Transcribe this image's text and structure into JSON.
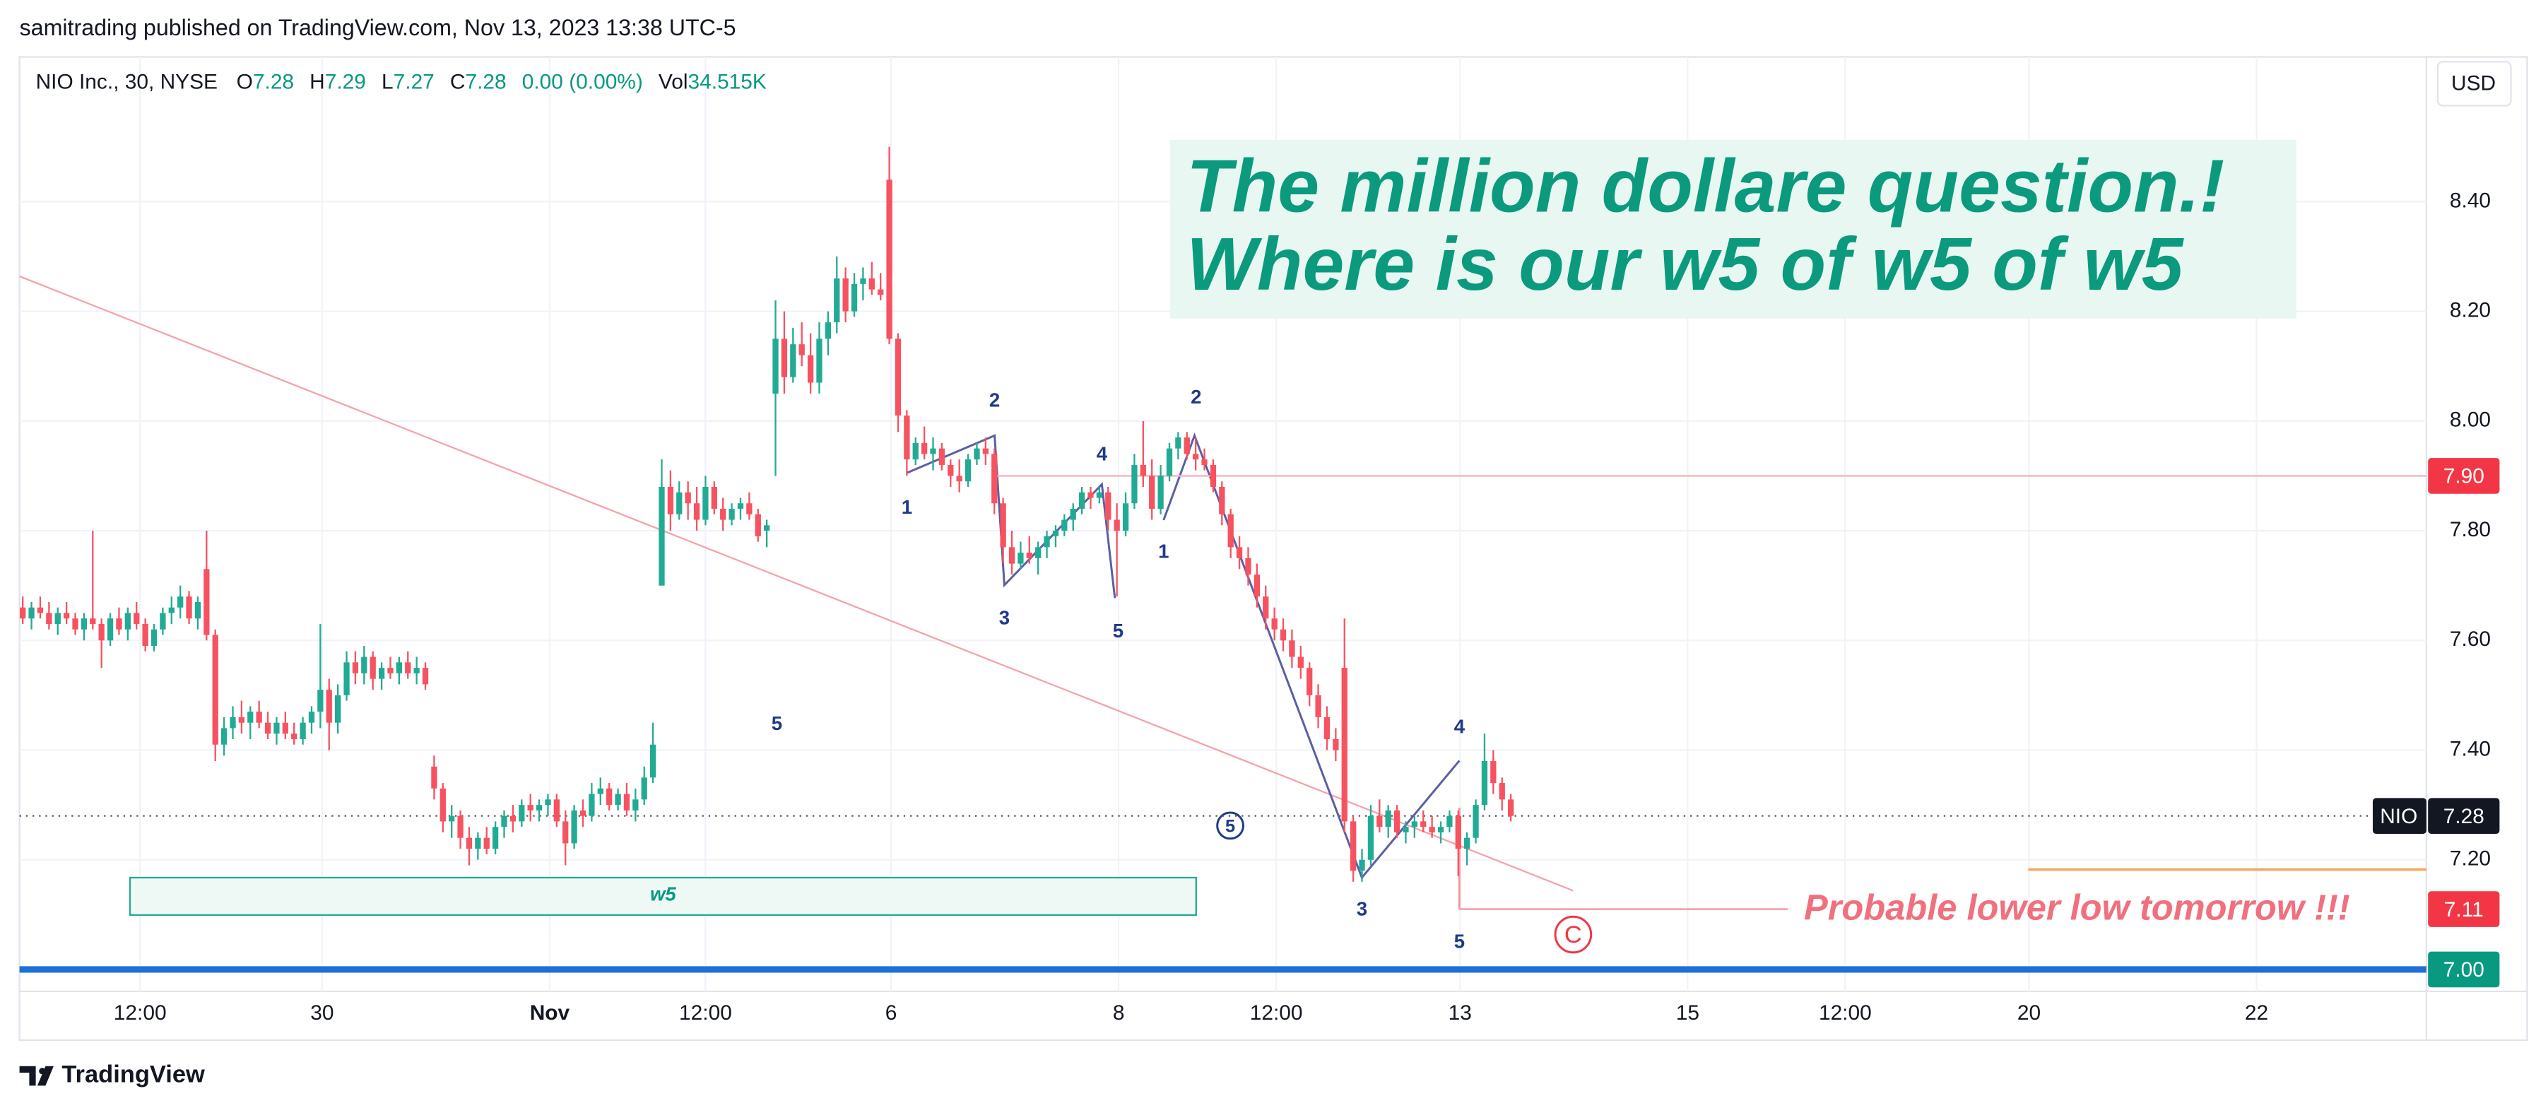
{
  "header": "samitrading published on TradingView.com, Nov 13, 2023 13:38 UTC-5",
  "footer": "TradingView",
  "chart_data": {
    "type": "candlestick",
    "legend": {
      "symbol": "NIO Inc., 30, NYSE",
      "open_label": "O",
      "open": 7.28,
      "high_label": "H",
      "high": 7.29,
      "low_label": "L",
      "low": 7.27,
      "close_label": "C",
      "close": 7.28,
      "change": "0.00 (0.00%)",
      "volume_label": "Vol",
      "volume": "34.515K"
    },
    "currency": "USD",
    "up_color": "#22ab94",
    "down_color": "#f7525f",
    "grid": true,
    "grid_color": "#f0f3fa",
    "ylim": [
      6.96,
      8.664
    ],
    "yticks": [
      {
        "value": 7.2,
        "label": "7.20"
      },
      {
        "value": 7.4,
        "label": "7.40"
      },
      {
        "value": 7.6,
        "label": "7.60"
      },
      {
        "value": 7.8,
        "label": "7.80"
      },
      {
        "value": 8.0,
        "label": "8.00"
      },
      {
        "value": 8.2,
        "label": "8.20"
      },
      {
        "value": 8.4,
        "label": "8.40"
      }
    ],
    "xlim": [
      -0.37,
      274.6
    ],
    "xticks": [
      {
        "value": 13.4,
        "label": "12:00"
      },
      {
        "value": 34.2,
        "label": "30"
      },
      {
        "value": 60.2,
        "label": "Nov"
      },
      {
        "value": 78,
        "label": "12:00"
      },
      {
        "value": 99.2,
        "label": "6"
      },
      {
        "value": 125.2,
        "label": "8"
      },
      {
        "value": 143.2,
        "label": "12:00"
      },
      {
        "value": 164.2,
        "label": "13"
      },
      {
        "value": 190.2,
        "label": "15"
      },
      {
        "value": 208.2,
        "label": "12:00"
      },
      {
        "value": 229.2,
        "label": "20"
      },
      {
        "value": 255.2,
        "label": "22"
      }
    ],
    "ohlc": [
      [
        7.66,
        7.68,
        7.63,
        7.64
      ],
      [
        7.64,
        7.67,
        7.62,
        7.66
      ],
      [
        7.66,
        7.68,
        7.64,
        7.65
      ],
      [
        7.65,
        7.67,
        7.62,
        7.63
      ],
      [
        7.63,
        7.66,
        7.61,
        7.65
      ],
      [
        7.65,
        7.67,
        7.63,
        7.64
      ],
      [
        7.64,
        7.65,
        7.61,
        7.62
      ],
      [
        7.62,
        7.65,
        7.6,
        7.64
      ],
      [
        7.64,
        7.8,
        7.62,
        7.63
      ],
      [
        7.63,
        7.64,
        7.55,
        7.6
      ],
      [
        7.6,
        7.65,
        7.59,
        7.64
      ],
      [
        7.64,
        7.66,
        7.61,
        7.62
      ],
      [
        7.62,
        7.66,
        7.6,
        7.65
      ],
      [
        7.65,
        7.67,
        7.62,
        7.63
      ],
      [
        7.63,
        7.64,
        7.58,
        7.59
      ],
      [
        7.59,
        7.63,
        7.58,
        7.62
      ],
      [
        7.62,
        7.66,
        7.61,
        7.65
      ],
      [
        7.65,
        7.68,
        7.63,
        7.66
      ],
      [
        7.66,
        7.7,
        7.64,
        7.68
      ],
      [
        7.68,
        7.69,
        7.63,
        7.64
      ],
      [
        7.64,
        7.68,
        7.62,
        7.67
      ],
      [
        7.73,
        7.8,
        7.6,
        7.61
      ],
      [
        7.61,
        7.62,
        7.38,
        7.41
      ],
      [
        7.41,
        7.46,
        7.39,
        7.44
      ],
      [
        7.44,
        7.48,
        7.42,
        7.46
      ],
      [
        7.46,
        7.49,
        7.43,
        7.45
      ],
      [
        7.45,
        7.48,
        7.42,
        7.47
      ],
      [
        7.47,
        7.49,
        7.44,
        7.45
      ],
      [
        7.45,
        7.47,
        7.42,
        7.43
      ],
      [
        7.43,
        7.46,
        7.41,
        7.45
      ],
      [
        7.45,
        7.47,
        7.42,
        7.43
      ],
      [
        7.43,
        7.45,
        7.41,
        7.42
      ],
      [
        7.42,
        7.46,
        7.41,
        7.45
      ],
      [
        7.45,
        7.48,
        7.43,
        7.47
      ],
      [
        7.47,
        7.63,
        7.44,
        7.51
      ],
      [
        7.51,
        7.53,
        7.4,
        7.45
      ],
      [
        7.45,
        7.52,
        7.43,
        7.5
      ],
      [
        7.5,
        7.58,
        7.49,
        7.56
      ],
      [
        7.56,
        7.58,
        7.52,
        7.54
      ],
      [
        7.54,
        7.59,
        7.52,
        7.57
      ],
      [
        7.57,
        7.58,
        7.51,
        7.53
      ],
      [
        7.53,
        7.56,
        7.51,
        7.55
      ],
      [
        7.55,
        7.57,
        7.53,
        7.54
      ],
      [
        7.54,
        7.57,
        7.52,
        7.56
      ],
      [
        7.56,
        7.58,
        7.53,
        7.54
      ],
      [
        7.54,
        7.57,
        7.52,
        7.55
      ],
      [
        7.55,
        7.56,
        7.51,
        7.52
      ],
      [
        7.37,
        7.39,
        7.31,
        7.33
      ],
      [
        7.33,
        7.34,
        7.25,
        7.27
      ],
      [
        7.27,
        7.3,
        7.24,
        7.28
      ],
      [
        7.28,
        7.29,
        7.22,
        7.24
      ],
      [
        7.24,
        7.26,
        7.19,
        7.22
      ],
      [
        7.22,
        7.25,
        7.2,
        7.24
      ],
      [
        7.24,
        7.26,
        7.21,
        7.22
      ],
      [
        7.22,
        7.27,
        7.21,
        7.26
      ],
      [
        7.26,
        7.29,
        7.24,
        7.28
      ],
      [
        7.28,
        7.3,
        7.25,
        7.27
      ],
      [
        7.27,
        7.31,
        7.26,
        7.3
      ],
      [
        7.3,
        7.32,
        7.27,
        7.29
      ],
      [
        7.29,
        7.31,
        7.27,
        7.3
      ],
      [
        7.3,
        7.32,
        7.28,
        7.31
      ],
      [
        7.31,
        7.32,
        7.26,
        7.27
      ],
      [
        7.27,
        7.29,
        7.19,
        7.23
      ],
      [
        7.23,
        7.3,
        7.22,
        7.29
      ],
      [
        7.29,
        7.31,
        7.26,
        7.28
      ],
      [
        7.28,
        7.34,
        7.27,
        7.32
      ],
      [
        7.32,
        7.35,
        7.3,
        7.33
      ],
      [
        7.33,
        7.34,
        7.29,
        7.3
      ],
      [
        7.3,
        7.33,
        7.29,
        7.32
      ],
      [
        7.32,
        7.34,
        7.28,
        7.29
      ],
      [
        7.29,
        7.33,
        7.27,
        7.31
      ],
      [
        7.31,
        7.37,
        7.3,
        7.35
      ],
      [
        7.35,
        7.45,
        7.34,
        7.41
      ],
      [
        7.7,
        7.93,
        7.7,
        7.88
      ],
      [
        7.88,
        7.91,
        7.8,
        7.83
      ],
      [
        7.83,
        7.89,
        7.82,
        7.87
      ],
      [
        7.87,
        7.89,
        7.82,
        7.85
      ],
      [
        7.85,
        7.88,
        7.8,
        7.82
      ],
      [
        7.82,
        7.9,
        7.81,
        7.88
      ],
      [
        7.88,
        7.89,
        7.83,
        7.84
      ],
      [
        7.84,
        7.86,
        7.8,
        7.82
      ],
      [
        7.82,
        7.85,
        7.81,
        7.84
      ],
      [
        7.84,
        7.86,
        7.82,
        7.85
      ],
      [
        7.85,
        7.87,
        7.82,
        7.83
      ],
      [
        7.83,
        7.84,
        7.78,
        7.79
      ],
      [
        7.8,
        7.82,
        7.77,
        7.81
      ],
      [
        8.05,
        8.22,
        7.9,
        8.15
      ],
      [
        8.15,
        8.2,
        8.05,
        8.08
      ],
      [
        8.08,
        8.17,
        8.07,
        8.14
      ],
      [
        8.14,
        8.18,
        8.1,
        8.12
      ],
      [
        8.12,
        8.16,
        8.05,
        8.07
      ],
      [
        8.07,
        8.18,
        8.05,
        8.15
      ],
      [
        8.15,
        8.2,
        8.12,
        8.18
      ],
      [
        8.18,
        8.3,
        8.16,
        8.26
      ],
      [
        8.26,
        8.28,
        8.18,
        8.2
      ],
      [
        8.2,
        8.27,
        8.19,
        8.25
      ],
      [
        8.25,
        8.28,
        8.22,
        8.26
      ],
      [
        8.26,
        8.29,
        8.23,
        8.24
      ],
      [
        8.24,
        8.27,
        8.22,
        8.23
      ],
      [
        8.44,
        8.5,
        8.14,
        8.15
      ],
      [
        8.15,
        8.16,
        7.98,
        8.01
      ],
      [
        8.01,
        8.02,
        7.9,
        7.93
      ],
      [
        7.93,
        7.97,
        7.92,
        7.96
      ],
      [
        7.96,
        7.99,
        7.93,
        7.94
      ],
      [
        7.94,
        7.97,
        7.91,
        7.95
      ],
      [
        7.95,
        7.96,
        7.91,
        7.92
      ],
      [
        7.92,
        7.93,
        7.88,
        7.9
      ],
      [
        7.9,
        7.93,
        7.87,
        7.89
      ],
      [
        7.89,
        7.94,
        7.88,
        7.93
      ],
      [
        7.93,
        7.96,
        7.92,
        7.95
      ],
      [
        7.95,
        7.97,
        7.92,
        7.94
      ],
      [
        7.94,
        7.95,
        7.83,
        7.85
      ],
      [
        7.85,
        7.86,
        7.74,
        7.77
      ],
      [
        7.77,
        7.8,
        7.72,
        7.74
      ],
      [
        7.74,
        7.78,
        7.73,
        7.76
      ],
      [
        7.76,
        7.79,
        7.74,
        7.75
      ],
      [
        7.75,
        7.78,
        7.72,
        7.77
      ],
      [
        7.77,
        7.8,
        7.75,
        7.79
      ],
      [
        7.79,
        7.81,
        7.77,
        7.8
      ],
      [
        7.8,
        7.83,
        7.79,
        7.82
      ],
      [
        7.82,
        7.85,
        7.8,
        7.84
      ],
      [
        7.84,
        7.88,
        7.83,
        7.87
      ],
      [
        7.87,
        7.88,
        7.84,
        7.86
      ],
      [
        7.86,
        7.88,
        7.85,
        7.87
      ],
      [
        7.87,
        7.88,
        7.8,
        7.82
      ],
      [
        7.82,
        7.85,
        7.68,
        7.8
      ],
      [
        7.8,
        7.87,
        7.79,
        7.85
      ],
      [
        7.85,
        7.94,
        7.84,
        7.92
      ],
      [
        7.92,
        8.0,
        7.88,
        7.9
      ],
      [
        7.9,
        7.93,
        7.82,
        7.84
      ],
      [
        7.84,
        7.92,
        7.83,
        7.9
      ],
      [
        7.9,
        7.96,
        7.89,
        7.95
      ],
      [
        7.95,
        7.98,
        7.93,
        7.97
      ],
      [
        7.97,
        7.98,
        7.93,
        7.94
      ],
      [
        7.94,
        7.97,
        7.91,
        7.93
      ],
      [
        7.93,
        7.95,
        7.91,
        7.92
      ],
      [
        7.92,
        7.93,
        7.87,
        7.88
      ],
      [
        7.88,
        7.89,
        7.81,
        7.83
      ],
      [
        7.83,
        7.84,
        7.75,
        7.77
      ],
      [
        7.77,
        7.79,
        7.73,
        7.75
      ],
      [
        7.75,
        7.77,
        7.7,
        7.72
      ],
      [
        7.72,
        7.74,
        7.66,
        7.68
      ],
      [
        7.68,
        7.7,
        7.62,
        7.64
      ],
      [
        7.64,
        7.66,
        7.6,
        7.62
      ],
      [
        7.62,
        7.64,
        7.58,
        7.6
      ],
      [
        7.6,
        7.62,
        7.55,
        7.57
      ],
      [
        7.57,
        7.59,
        7.53,
        7.55
      ],
      [
        7.55,
        7.56,
        7.48,
        7.5
      ],
      [
        7.5,
        7.52,
        7.44,
        7.46
      ],
      [
        7.46,
        7.48,
        7.4,
        7.42
      ],
      [
        7.42,
        7.44,
        7.38,
        7.4
      ],
      [
        7.55,
        7.64,
        7.25,
        7.27
      ],
      [
        7.27,
        7.28,
        7.16,
        7.18
      ],
      [
        7.18,
        7.22,
        7.16,
        7.2
      ],
      [
        7.2,
        7.3,
        7.19,
        7.28
      ],
      [
        7.28,
        7.31,
        7.25,
        7.26
      ],
      [
        7.26,
        7.3,
        7.24,
        7.29
      ],
      [
        7.29,
        7.3,
        7.24,
        7.25
      ],
      [
        7.25,
        7.27,
        7.23,
        7.26
      ],
      [
        7.26,
        7.28,
        7.24,
        7.27
      ],
      [
        7.27,
        7.29,
        7.25,
        7.26
      ],
      [
        7.26,
        7.28,
        7.24,
        7.25
      ],
      [
        7.25,
        7.27,
        7.23,
        7.26
      ],
      [
        7.26,
        7.29,
        7.25,
        7.28
      ],
      [
        7.28,
        7.29,
        7.17,
        7.22
      ],
      [
        7.22,
        7.25,
        7.19,
        7.24
      ],
      [
        7.24,
        7.31,
        7.23,
        7.3
      ],
      [
        7.3,
        7.43,
        7.29,
        7.38
      ],
      [
        7.38,
        7.4,
        7.32,
        7.34
      ],
      [
        7.34,
        7.35,
        7.29,
        7.31
      ],
      [
        7.31,
        7.32,
        7.27,
        7.28
      ]
    ],
    "last_price": {
      "symbol": "NIO",
      "value": 7.28
    },
    "price_lines": [
      {
        "value": 7.9,
        "label": "7.90",
        "color": "#f23645",
        "line_color": "#f7b3ba"
      },
      {
        "value": 7.11,
        "label": "7.11",
        "color": "#f23645",
        "line_color": "#f7939c"
      },
      {
        "value": 7.0,
        "label": "7.00",
        "color": "#089981",
        "line_color": "#1e6fd9"
      }
    ],
    "annotations": {
      "headline": [
        "The million dollare question.!",
        "Where is our w5 of w5 of w5"
      ],
      "note": "Probable lower low tomorrow !!!",
      "box_label": "w5",
      "wave_labels": [
        "1",
        "2",
        "3",
        "4",
        "5",
        "1",
        "2",
        "3",
        "4",
        "5",
        "5"
      ],
      "circled": [
        "5",
        "C"
      ]
    }
  }
}
